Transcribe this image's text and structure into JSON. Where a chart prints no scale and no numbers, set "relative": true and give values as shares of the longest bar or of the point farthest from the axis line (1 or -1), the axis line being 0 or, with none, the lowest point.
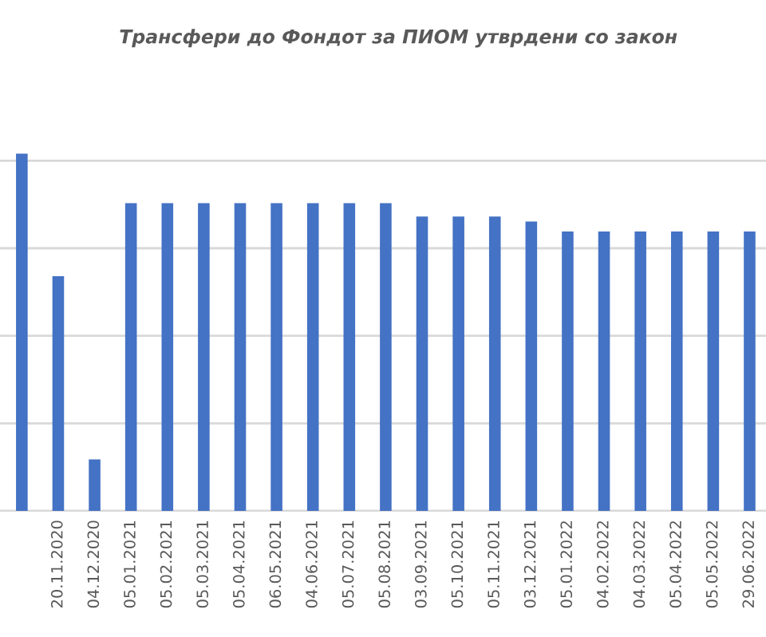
{
  "chart_data": {
    "type": "bar",
    "title": "Трансфери до Фондот за ПИОМ утврдени со закон",
    "categories": [
      null,
      "20.11.2020",
      "04.12.2020",
      "05.01.2021",
      "05.02.2021",
      "05.03.2021",
      "05.04.2021",
      "06.05.2021",
      "04.06.2021",
      "05.07.2021",
      "05.08.2021",
      "03.09.2021",
      "05.10.2021",
      "05.11.2021",
      "03.12.2021",
      "05.01.2022",
      "04.02.2022",
      "04.03.2022",
      "05.04.2022",
      "05.05.2022",
      "29.06.2022"
    ],
    "values": [
      1,
      0.657,
      0.144,
      0.861,
      0.861,
      0.861,
      0.861,
      0.861,
      0.861,
      0.861,
      0.861,
      0.824,
      0.824,
      0.824,
      0.81,
      0.782,
      0.782,
      0.782,
      0.782,
      0.782,
      0.782
    ],
    "color": "#4472c4",
    "relative": true,
    "grid": "y",
    "legend": false
  }
}
